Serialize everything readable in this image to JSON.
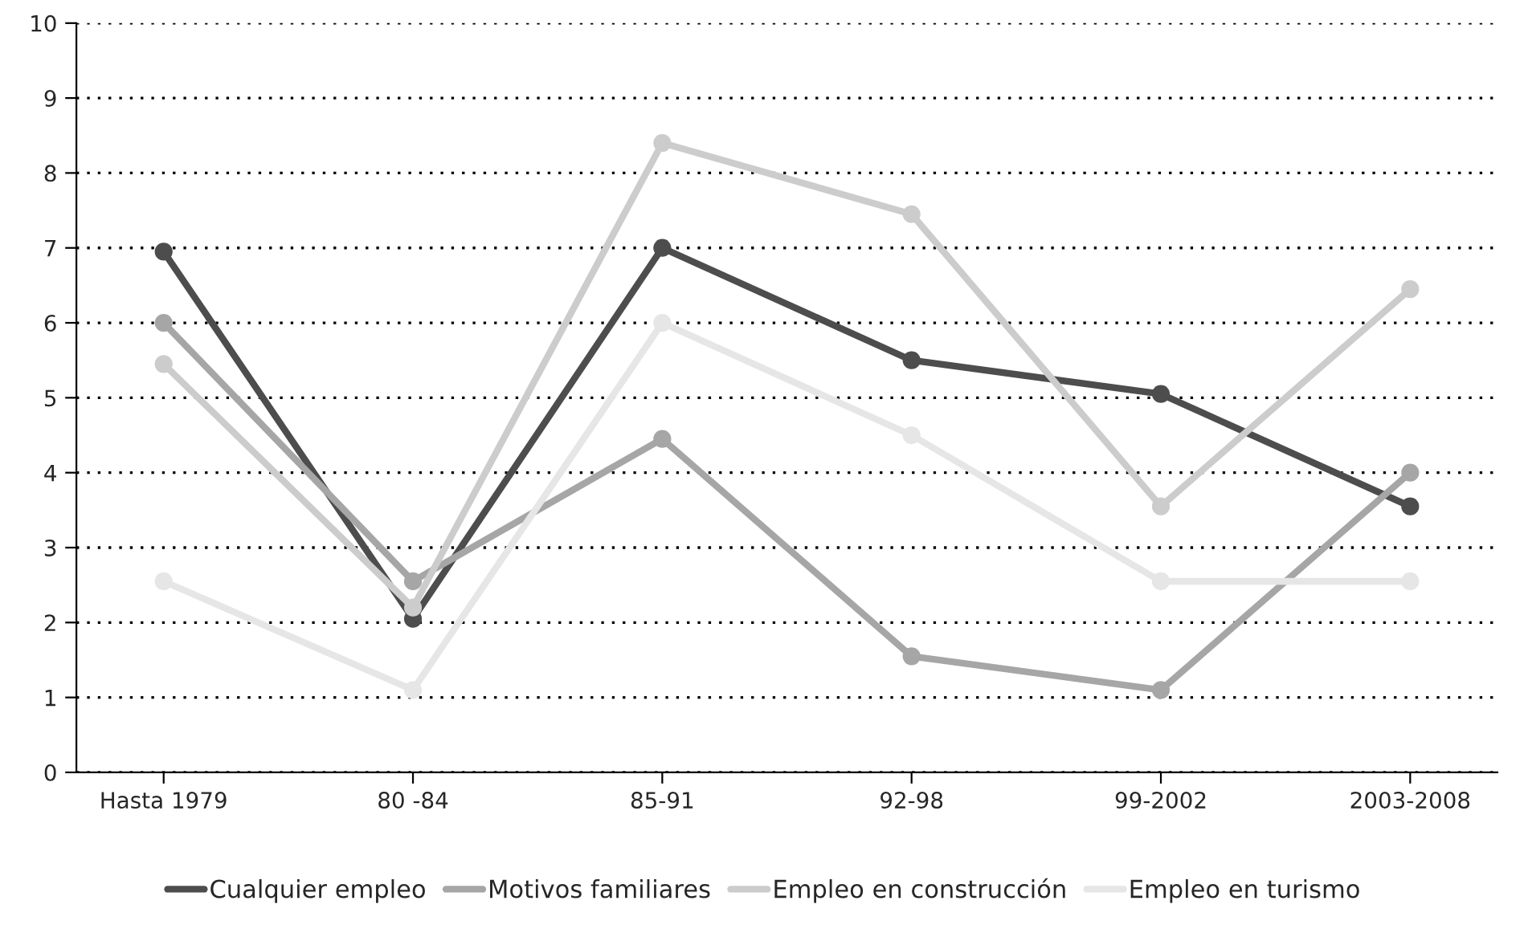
{
  "chart_data": {
    "type": "line",
    "categories": [
      "Hasta 1979",
      "80 -84",
      "85-91",
      "92-98",
      "99-2002",
      "2003-2008"
    ],
    "series": [
      {
        "name": "Cualquier empleo",
        "color": "#4d4d4d",
        "values": [
          6.95,
          2.05,
          7.0,
          5.5,
          5.05,
          3.55
        ]
      },
      {
        "name": "Motivos familiares",
        "color": "#a6a6a6",
        "values": [
          6.0,
          2.55,
          4.45,
          1.55,
          1.1,
          4.0
        ]
      },
      {
        "name": "Empleo en construcción",
        "color": "#cccccc",
        "values": [
          5.45,
          2.2,
          8.4,
          7.45,
          3.55,
          6.45
        ]
      },
      {
        "name": "Empleo en turismo",
        "color": "#e6e6e6",
        "values": [
          2.55,
          1.1,
          6.0,
          4.5,
          2.55,
          2.55
        ]
      }
    ],
    "ylim": [
      0,
      10
    ],
    "yticks": [
      0,
      1,
      2,
      3,
      4,
      5,
      6,
      7,
      8,
      9,
      10
    ],
    "grid": "y",
    "legend": "bottom",
    "marker": "circle",
    "line_style": "solid"
  }
}
